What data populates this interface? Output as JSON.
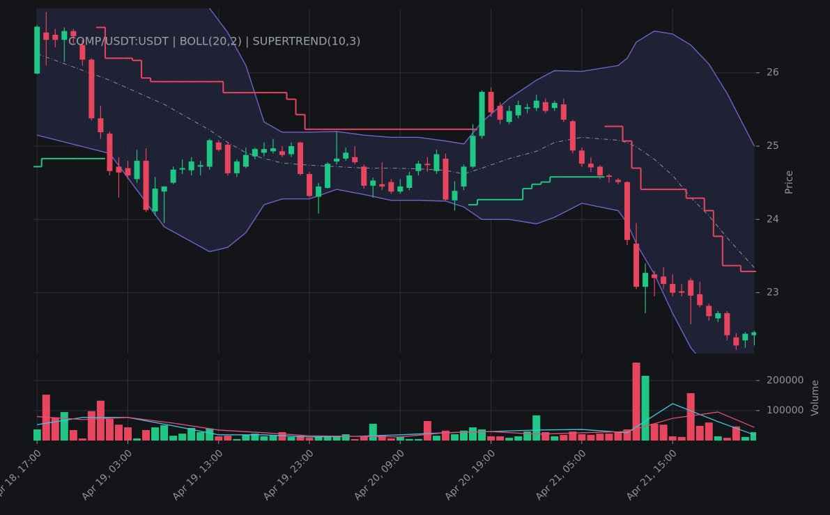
{
  "chart_data": [
    {
      "type": "candlestick",
      "title": "COMP/USDT:USDT | BOLL(20,2) | SUPERTREND(10,3)",
      "y_label": "Price",
      "xlim": [
        -0.4,
        79.2
      ],
      "ylim": [
        22.17,
        26.88
      ],
      "yticks": [
        23,
        24,
        25,
        26
      ],
      "grid": true,
      "up_color": "#1fc785",
      "down_color": "#e8455f",
      "open": [
        25.99,
        26.55,
        26.52,
        26.45,
        26.57,
        26.38,
        26.18,
        25.38,
        25.17,
        24.72,
        24.7,
        24.55,
        24.8,
        24.11,
        24.38,
        24.5,
        24.68,
        24.67,
        24.72,
        24.72,
        25.05,
        25.02,
        24.63,
        24.72,
        24.86,
        24.91,
        24.93,
        24.93,
        24.89,
        25.05,
        24.62,
        24.31,
        24.43,
        24.79,
        24.83,
        24.85,
        24.72,
        24.46,
        24.48,
        24.51,
        24.38,
        24.43,
        24.66,
        24.76,
        24.66,
        24.83,
        24.26,
        24.45,
        24.72,
        25.14,
        25.74,
        25.55,
        25.33,
        25.42,
        25.51,
        25.52,
        25.6,
        25.52,
        25.57,
        25.34,
        24.94,
        24.76,
        24.72,
        24.6,
        24.54,
        24.51,
        23.67,
        23.08,
        23.25,
        23.22,
        23.12,
        23.02,
        23.17,
        22.98,
        22.82,
        22.65,
        22.72,
        22.39,
        22.35,
        22.42
      ],
      "high": [
        26.65,
        26.83,
        26.6,
        26.62,
        26.6,
        26.45,
        26.2,
        25.55,
        25.2,
        24.85,
        24.8,
        24.95,
        24.97,
        24.58,
        24.45,
        24.72,
        24.82,
        24.85,
        24.8,
        25.1,
        25.08,
        25.05,
        24.82,
        24.98,
        24.98,
        25.05,
        25.1,
        25.0,
        25.05,
        25.06,
        24.65,
        24.5,
        24.78,
        25.2,
        24.98,
        25.0,
        24.75,
        24.57,
        24.78,
        24.55,
        24.55,
        24.65,
        24.8,
        24.85,
        24.95,
        24.9,
        24.52,
        24.75,
        25.3,
        25.76,
        25.8,
        25.6,
        25.55,
        25.62,
        25.58,
        25.7,
        25.65,
        25.62,
        25.65,
        25.36,
        24.98,
        24.85,
        24.74,
        24.62,
        24.56,
        24.52,
        23.95,
        23.4,
        23.3,
        23.35,
        23.25,
        23.12,
        23.2,
        23.15,
        22.85,
        22.75,
        22.75,
        22.45,
        22.46,
        22.48
      ],
      "low": [
        25.98,
        26.1,
        26.35,
        26.15,
        26.4,
        26.1,
        25.35,
        25.1,
        24.6,
        24.3,
        24.55,
        24.5,
        24.1,
        24.05,
        23.95,
        24.48,
        24.62,
        24.6,
        24.6,
        24.68,
        24.93,
        24.6,
        24.58,
        24.7,
        24.82,
        24.86,
        24.9,
        24.85,
        24.85,
        24.6,
        24.3,
        24.08,
        24.42,
        24.75,
        24.8,
        24.75,
        24.42,
        24.3,
        24.4,
        24.35,
        24.35,
        24.4,
        24.6,
        24.65,
        24.62,
        24.25,
        24.12,
        24.4,
        24.7,
        25.1,
        25.4,
        25.3,
        25.3,
        25.38,
        25.45,
        25.48,
        25.45,
        25.48,
        25.33,
        24.9,
        24.72,
        24.65,
        24.55,
        24.5,
        24.48,
        23.65,
        23.05,
        22.72,
        22.95,
        23.05,
        22.95,
        22.95,
        22.57,
        22.8,
        22.62,
        22.6,
        22.35,
        22.22,
        22.25,
        22.28
      ],
      "close": [
        26.63,
        26.45,
        26.45,
        26.57,
        26.5,
        26.18,
        25.38,
        25.19,
        24.66,
        24.64,
        24.6,
        24.8,
        24.13,
        24.42,
        24.45,
        24.68,
        24.7,
        24.79,
        24.74,
        25.08,
        24.95,
        24.63,
        24.79,
        24.88,
        24.96,
        24.96,
        24.97,
        24.88,
        25.0,
        24.62,
        24.32,
        24.45,
        24.76,
        24.83,
        24.91,
        24.78,
        24.46,
        24.53,
        24.45,
        24.38,
        24.45,
        24.6,
        24.76,
        24.74,
        24.89,
        24.27,
        24.39,
        24.72,
        25.14,
        25.74,
        25.46,
        25.36,
        25.48,
        25.56,
        25.53,
        25.62,
        25.48,
        25.59,
        25.36,
        24.94,
        24.76,
        24.71,
        24.6,
        24.58,
        24.51,
        23.72,
        23.08,
        23.27,
        23.2,
        23.12,
        23.0,
        23.0,
        22.96,
        22.83,
        22.68,
        22.72,
        22.42,
        22.28,
        22.44,
        22.46
      ],
      "bollinger": {
        "color": "#7262c9",
        "middle_color": "#8f949b",
        "fill": "#22233a",
        "x": [
          0,
          8,
          14,
          19,
          21,
          23,
          25,
          27,
          30,
          33,
          36,
          39,
          42,
          45,
          47,
          49,
          52,
          55,
          57,
          60,
          64,
          65,
          66,
          68,
          70,
          72,
          74,
          76,
          79
        ],
        "upper": [
          27.6,
          27.8,
          27.5,
          26.88,
          26.55,
          26.1,
          25.33,
          25.19,
          25.19,
          25.2,
          25.15,
          25.12,
          25.12,
          25.07,
          25.03,
          25.33,
          25.65,
          25.9,
          26.03,
          26.02,
          26.1,
          26.2,
          26.42,
          26.57,
          26.53,
          26.38,
          26.12,
          25.72,
          25.0
        ],
        "middle": [
          26.26,
          25.9,
          25.57,
          25.22,
          25.05,
          24.91,
          24.83,
          24.77,
          24.74,
          24.72,
          24.7,
          24.7,
          24.69,
          24.67,
          24.62,
          24.7,
          24.83,
          24.93,
          25.05,
          25.12,
          25.08,
          25.05,
          24.99,
          24.82,
          24.6,
          24.3,
          24.05,
          23.75,
          23.34
        ],
        "lower": [
          25.15,
          24.9,
          23.9,
          23.56,
          23.62,
          23.82,
          24.2,
          24.28,
          24.28,
          24.41,
          24.34,
          24.26,
          24.26,
          24.25,
          24.17,
          24.0,
          24.0,
          23.94,
          24.03,
          24.22,
          24.12,
          23.95,
          23.67,
          23.25,
          22.72,
          22.25,
          21.95,
          21.75,
          21.5
        ]
      },
      "supertrend": {
        "up_color": "#1fc785",
        "down_color": "#e8455f",
        "up": [
          24.72,
          24.83,
          24.83,
          24.83,
          24.83,
          24.83,
          24.83,
          24.83,
          null,
          null,
          null,
          null,
          null,
          null,
          null,
          null,
          null,
          null,
          null,
          null,
          null,
          null,
          null,
          null,
          null,
          null,
          null,
          null,
          null,
          null,
          null,
          null,
          null,
          null,
          null,
          null,
          null,
          null,
          null,
          null,
          null,
          null,
          null,
          null,
          null,
          null,
          null,
          null,
          24.2,
          24.27,
          24.27,
          24.27,
          24.27,
          24.27,
          24.42,
          24.48,
          24.51,
          24.58,
          24.58,
          24.58,
          24.58,
          24.58,
          24.58,
          null,
          null,
          null,
          null,
          null,
          null,
          null,
          null,
          null,
          null,
          null,
          null,
          null,
          null,
          null,
          null,
          null
        ],
        "down": [
          null,
          null,
          null,
          null,
          null,
          null,
          null,
          26.62,
          26.2,
          26.2,
          26.2,
          26.17,
          25.93,
          25.88,
          25.88,
          25.88,
          25.88,
          25.88,
          25.88,
          25.88,
          25.88,
          25.73,
          25.73,
          25.73,
          25.73,
          25.73,
          25.73,
          25.73,
          25.64,
          25.43,
          25.23,
          25.23,
          25.23,
          25.23,
          25.23,
          25.23,
          25.23,
          25.23,
          25.23,
          25.23,
          25.23,
          25.23,
          25.23,
          25.23,
          25.23,
          25.23,
          25.23,
          25.23,
          25.23,
          null,
          null,
          null,
          null,
          null,
          null,
          null,
          null,
          null,
          null,
          null,
          null,
          null,
          null,
          25.27,
          25.27,
          25.07,
          24.7,
          24.41,
          24.41,
          24.41,
          24.41,
          24.41,
          24.29,
          24.29,
          24.12,
          23.77,
          23.37,
          23.37,
          23.29,
          23.29
        ]
      }
    },
    {
      "type": "bar",
      "y_label": "Volume",
      "xlim": [
        -0.4,
        79.2
      ],
      "ylim": [
        0,
        267000
      ],
      "yticks": [
        100000,
        200000
      ],
      "grid": true,
      "xticks": [
        {
          "value": 0,
          "label": "Apr 18, 17:00"
        },
        {
          "value": 10,
          "label": "Apr 19, 03:00"
        },
        {
          "value": 20,
          "label": "Apr 19, 13:00"
        },
        {
          "value": 30,
          "label": "Apr 19, 23:00"
        },
        {
          "value": 40,
          "label": "Apr 20, 09:00"
        },
        {
          "value": 50,
          "label": "Apr 20, 19:00"
        },
        {
          "value": 60,
          "label": "Apr 21, 05:00"
        },
        {
          "value": 70,
          "label": "Apr 21, 15:00"
        }
      ],
      "values": [
        37000,
        153000,
        77000,
        95000,
        35000,
        7000,
        98000,
        133000,
        72000,
        53000,
        44000,
        7000,
        35000,
        44000,
        51000,
        16000,
        23000,
        42000,
        28000,
        40000,
        14000,
        16000,
        5000,
        19000,
        23000,
        14000,
        16000,
        28000,
        12000,
        16000,
        9000,
        14000,
        14000,
        16000,
        21000,
        5000,
        12000,
        56000,
        16000,
        7000,
        12000,
        5000,
        5000,
        65000,
        16000,
        33000,
        21000,
        33000,
        44000,
        37000,
        14000,
        14000,
        9000,
        14000,
        30000,
        84000,
        28000,
        14000,
        19000,
        30000,
        21000,
        19000,
        23000,
        23000,
        28000,
        37000,
        260000,
        216000,
        56000,
        53000,
        14000,
        12000,
        158000,
        49000,
        60000,
        14000,
        9000,
        47000,
        12000,
        28000
      ],
      "moving_averages": [
        {
          "color": "#3ec6e0",
          "x": [
            0,
            5,
            10,
            15,
            20,
            25,
            30,
            35,
            40,
            45,
            50,
            55,
            60,
            65,
            70,
            75,
            79
          ],
          "values": [
            53000,
            77000,
            77000,
            49000,
            19000,
            19000,
            12000,
            14000,
            19000,
            26000,
            30000,
            35000,
            37000,
            26000,
            123000,
            63000,
            19000
          ]
        },
        {
          "color": "#e0507a",
          "x": [
            0,
            5,
            10,
            15,
            20,
            25,
            30,
            35,
            40,
            45,
            50,
            55,
            60,
            65,
            70,
            75,
            79
          ],
          "values": [
            80000,
            70000,
            77000,
            58000,
            35000,
            26000,
            16000,
            14000,
            12000,
            26000,
            30000,
            21000,
            26000,
            30000,
            74000,
            95000,
            44000
          ]
        }
      ]
    }
  ]
}
